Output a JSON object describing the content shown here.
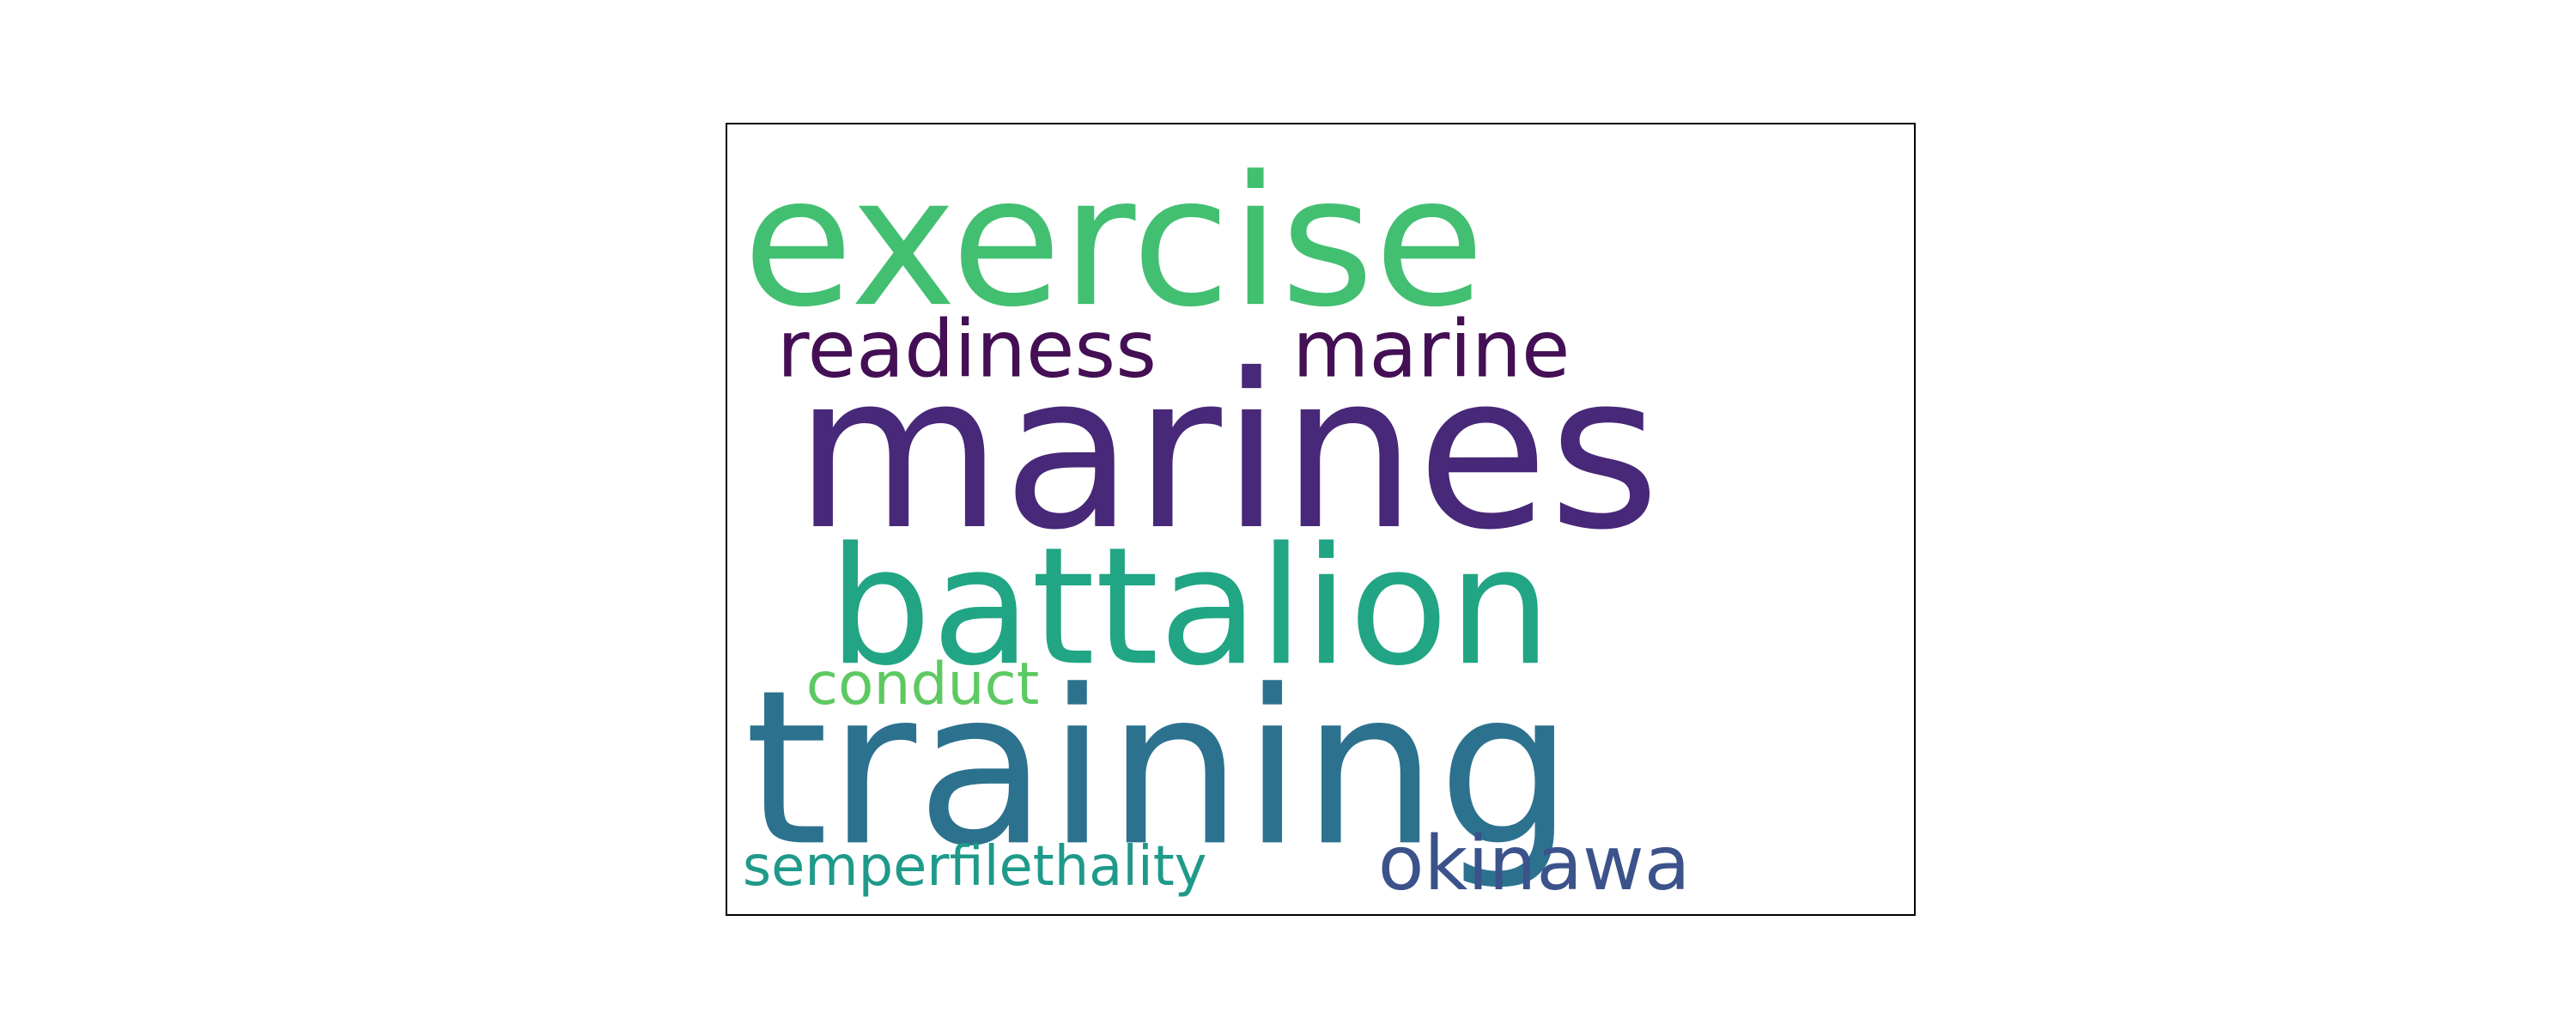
{
  "chart_data": {
    "type": "wordcloud",
    "title": "",
    "words": [
      {
        "text": "marines",
        "weight": 1.0,
        "color": "#482878"
      },
      {
        "text": "training",
        "weight": 0.95,
        "color": "#2c728e"
      },
      {
        "text": "exercise",
        "weight": 0.85,
        "color": "#43bf71"
      },
      {
        "text": "battalion",
        "weight": 0.7,
        "color": "#21a585"
      },
      {
        "text": "readiness",
        "weight": 0.3,
        "color": "#440f54"
      },
      {
        "text": "marine",
        "weight": 0.3,
        "color": "#440f54"
      },
      {
        "text": "okinawa",
        "weight": 0.3,
        "color": "#3b528b"
      },
      {
        "text": "conduct",
        "weight": 0.24,
        "color": "#5ec962"
      },
      {
        "text": "semperfilethality",
        "weight": 0.2,
        "color": "#1f9a8a"
      }
    ]
  }
}
